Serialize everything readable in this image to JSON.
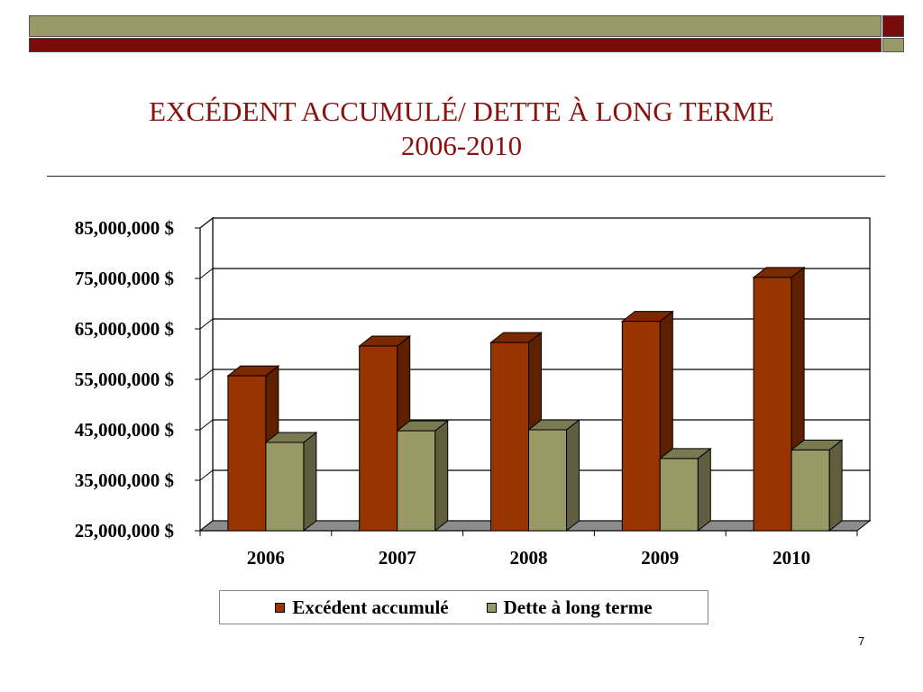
{
  "slide": {
    "title_line1": "EXCÉDENT ACCUMULÉ/ DETTE À LONG TERME",
    "title_line2": "2006-2010",
    "page_number": "7"
  },
  "chart_data": {
    "type": "bar",
    "title": "",
    "xlabel": "",
    "ylabel": "",
    "categories": [
      "2006",
      "2007",
      "2008",
      "2009",
      "2010"
    ],
    "series": [
      {
        "name": "Excédent accumulé",
        "values": [
          55700000,
          61600000,
          62300000,
          66500000,
          75200000
        ],
        "color": "#993300"
      },
      {
        "name": "Dette à long terme",
        "values": [
          42500000,
          44800000,
          45000000,
          39300000,
          41000000
        ],
        "color": "#999966"
      }
    ],
    "yticks": [
      "85,000,000 $",
      "75,000,000 $",
      "65,000,000 $",
      "55,000,000 $",
      "45,000,000 $",
      "35,000,000 $",
      "25,000,000 $"
    ],
    "ylim": [
      25000000,
      85000000
    ],
    "grid": true,
    "three_d": true,
    "legend_position": "bottom"
  }
}
